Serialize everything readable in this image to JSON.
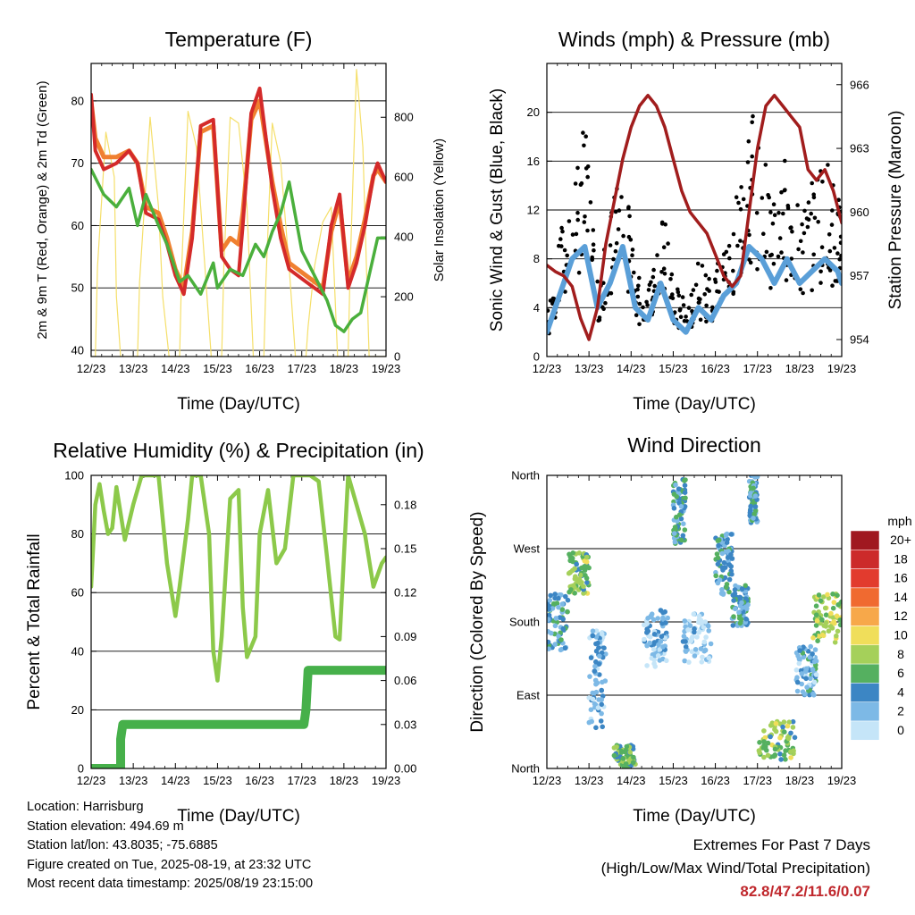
{
  "colors": {
    "temp_2m": "#d42a2a",
    "temp_9m": "#f08030",
    "dewpoint": "#4aaf3c",
    "solar": "#f5df6a",
    "wind": "#5a9fd8",
    "gust": "#000000",
    "pressure": "#a11d1d",
    "rh": "#8cc94a",
    "precip": "#46b04a",
    "extremes_text": "#c0282d"
  },
  "chart_data": [
    {
      "type": "line",
      "title": "Temperature (F)",
      "xlabel": "Time (Day/UTC)",
      "ylabel": "2m & 9m T (Red, Orange) & 2m Td (Green)",
      "ylabel_right": "Solar Insolation (Yellow)",
      "x_ticks": [
        "12/23",
        "13/23",
        "14/23",
        "15/23",
        "16/23",
        "17/23",
        "18/23",
        "19/23"
      ],
      "xlim": [
        0,
        7
      ],
      "ylim": [
        39,
        86
      ],
      "y_ticks": [
        40,
        50,
        60,
        70,
        80
      ],
      "ylim_right": [
        0,
        980
      ],
      "y_ticks_right": [
        0,
        200,
        400,
        600,
        800
      ],
      "grid": "horizontal",
      "series": [
        {
          "axis": "left",
          "x": [
            0,
            0.1,
            0.3,
            0.6,
            0.9,
            1.1,
            1.3,
            1.6,
            1.8,
            2.0,
            2.2,
            2.4,
            2.6,
            2.9,
            3.1,
            3.3,
            3.5,
            3.6,
            3.8,
            4.0,
            4.3,
            4.5,
            4.7,
            4.9,
            5.1,
            5.3,
            5.5,
            5.7,
            5.9,
            6.1,
            6.3,
            6.5,
            6.7,
            6.8,
            7.0
          ],
          "values": [
            81,
            72,
            69,
            70,
            72,
            70,
            62,
            61,
            57,
            52,
            49,
            58,
            76,
            77,
            55,
            53,
            52,
            60,
            78,
            82,
            66,
            58,
            53,
            52,
            51,
            50,
            49,
            60,
            65,
            50,
            54,
            60,
            68,
            70,
            67
          ]
        },
        {
          "axis": "left",
          "x": [
            0,
            0.1,
            0.3,
            0.6,
            0.9,
            1.1,
            1.3,
            1.6,
            1.8,
            2.0,
            2.2,
            2.4,
            2.6,
            2.9,
            3.1,
            3.3,
            3.5,
            3.6,
            3.8,
            4.0,
            4.3,
            4.5,
            4.7,
            4.9,
            5.1,
            5.3,
            5.5,
            5.7,
            5.9,
            6.1,
            6.3,
            6.5,
            6.7,
            6.8,
            7.0
          ],
          "values": [
            80,
            74,
            71,
            71,
            72,
            70,
            63,
            62,
            58,
            53,
            50,
            59,
            75,
            76,
            56,
            58,
            57,
            62,
            77,
            80,
            67,
            60,
            54,
            53,
            52,
            51,
            50,
            59,
            64,
            51,
            55,
            61,
            68,
            69,
            67
          ]
        },
        {
          "axis": "left",
          "x": [
            0,
            0.3,
            0.6,
            0.9,
            1.1,
            1.3,
            1.6,
            1.8,
            2.1,
            2.3,
            2.6,
            2.9,
            3.0,
            3.3,
            3.6,
            3.9,
            4.1,
            4.3,
            4.5,
            4.7,
            5.0,
            5.3,
            5.6,
            5.8,
            6.0,
            6.2,
            6.4,
            6.6,
            6.8,
            7.0
          ],
          "values": [
            69,
            65,
            63,
            66,
            60,
            65,
            60,
            57,
            51,
            52,
            49,
            54,
            50,
            53,
            52,
            57,
            55,
            59,
            62,
            67,
            56,
            52,
            48,
            44,
            43,
            45,
            46,
            52,
            58,
            58
          ]
        },
        {
          "axis": "right",
          "x": [
            0,
            0.1,
            0.15,
            0.35,
            0.55,
            0.6,
            0.7,
            0.8,
            1.1,
            1.15,
            1.4,
            1.6,
            1.7,
            1.85,
            2.1,
            2.15,
            2.3,
            2.5,
            2.7,
            2.85,
            3.1,
            3.15,
            3.3,
            3.5,
            3.7,
            3.85,
            4.1,
            4.15,
            4.3,
            4.5,
            4.7,
            4.85,
            5.1,
            5.15,
            5.3,
            5.5,
            5.7,
            5.85,
            6.1,
            6.15,
            6.3,
            6.45,
            6.6,
            6.85,
            7.0
          ],
          "values": [
            0,
            0,
            300,
            750,
            600,
            200,
            0,
            0,
            0,
            250,
            800,
            500,
            200,
            0,
            0,
            300,
            820,
            700,
            300,
            0,
            0,
            300,
            800,
            780,
            500,
            0,
            0,
            250,
            780,
            650,
            300,
            0,
            0,
            100,
            300,
            450,
            500,
            0,
            0,
            300,
            960,
            700,
            0,
            0,
            0
          ]
        }
      ],
      "series_names": [
        "2m T",
        "9m T",
        "2m Td",
        "Solar Insolation"
      ]
    },
    {
      "type": "line",
      "title": "Winds (mph) & Pressure (mb)",
      "xlabel": "Time (Day/UTC)",
      "ylabel": "Sonic Wind & Gust (Blue, Black)",
      "ylabel_right": "Station Pressure (Maroon)",
      "x_ticks": [
        "12/23",
        "13/23",
        "14/23",
        "15/23",
        "16/23",
        "17/23",
        "18/23",
        "19/23"
      ],
      "xlim": [
        0,
        7
      ],
      "ylim": [
        0,
        24
      ],
      "y_ticks": [
        0,
        4,
        8,
        12,
        16,
        20
      ],
      "ylim_right": [
        953.2,
        967
      ],
      "y_ticks_right": [
        954,
        957,
        960,
        963,
        966
      ],
      "grid": "horizontal",
      "series": [
        {
          "axis": "left",
          "x": [
            0,
            0.3,
            0.6,
            0.9,
            1.2,
            1.5,
            1.8,
            2.1,
            2.4,
            2.7,
            3.0,
            3.3,
            3.6,
            3.9,
            4.2,
            4.5,
            4.8,
            5.1,
            5.4,
            5.7,
            6.0,
            6.3,
            6.6,
            6.9,
            7.0
          ],
          "values": [
            2,
            5,
            8,
            9,
            4,
            6,
            9,
            4,
            3,
            6,
            3,
            2,
            4,
            3,
            5,
            6,
            9,
            8,
            6,
            8,
            6,
            7,
            8,
            7,
            6
          ]
        },
        {
          "axis": "left",
          "x": [
            0,
            0.3,
            0.6,
            0.9,
            1.2,
            1.5,
            1.8,
            2.1,
            2.4,
            2.7,
            3.0,
            3.3,
            3.6,
            3.9,
            4.2,
            4.5,
            4.8,
            5.1,
            5.4,
            5.7,
            6.0,
            6.3,
            6.6,
            6.9,
            7.0
          ],
          "values": [
            3,
            8,
            13,
            16,
            6,
            10,
            14,
            6,
            5,
            12,
            5,
            4,
            7,
            5,
            8,
            11,
            17,
            15,
            11,
            14,
            10,
            12,
            14,
            12,
            9
          ]
        },
        {
          "axis": "right",
          "x": [
            0,
            0.2,
            0.4,
            0.6,
            0.8,
            1.0,
            1.2,
            1.4,
            1.6,
            1.8,
            2.0,
            2.2,
            2.4,
            2.6,
            2.8,
            3.0,
            3.2,
            3.4,
            3.6,
            3.8,
            4.0,
            4.2,
            4.4,
            4.6,
            4.8,
            5.0,
            5.2,
            5.4,
            5.6,
            5.8,
            6.0,
            6.2,
            6.4,
            6.6,
            6.8,
            7.0
          ],
          "values": [
            957.5,
            957.2,
            957,
            956.5,
            955,
            954,
            955.5,
            958.5,
            960.5,
            962.5,
            964,
            965,
            965.5,
            965,
            964,
            962.5,
            961,
            960,
            959.5,
            959,
            958,
            957,
            956.5,
            957,
            960,
            963,
            965,
            965.5,
            965,
            964.5,
            964,
            962,
            961.5,
            962,
            961,
            959.5
          ]
        }
      ],
      "series_names": [
        "Sonic Wind",
        "Gust",
        "Station Pressure"
      ]
    },
    {
      "type": "line",
      "title": "Relative Humidity (%) & Precipitation (in)",
      "xlabel": "Time (Day/UTC)",
      "ylabel": "Percent & Total Rainfall",
      "x_ticks": [
        "12/23",
        "13/23",
        "14/23",
        "15/23",
        "16/23",
        "17/23",
        "18/23",
        "19/23"
      ],
      "xlim": [
        0,
        7
      ],
      "ylim": [
        0,
        100
      ],
      "y_ticks": [
        0,
        20,
        40,
        60,
        80,
        100
      ],
      "ylim_right": [
        0,
        0.2
      ],
      "y_ticks_right": [
        "0.00",
        "0.03",
        "0.06",
        "0.09",
        "0.12",
        "0.15",
        "0.18"
      ],
      "grid": "horizontal",
      "series": [
        {
          "axis": "left",
          "x": [
            0,
            0.1,
            0.2,
            0.3,
            0.4,
            0.5,
            0.6,
            0.8,
            1.0,
            1.2,
            1.4,
            1.6,
            1.8,
            2.0,
            2.1,
            2.3,
            2.4,
            2.6,
            2.8,
            2.9,
            3.0,
            3.1,
            3.3,
            3.5,
            3.6,
            3.7,
            3.9,
            4.0,
            4.2,
            4.4,
            4.6,
            4.8,
            5.0,
            5.2,
            5.4,
            5.6,
            5.8,
            5.9,
            6.1,
            6.3,
            6.5,
            6.7,
            6.9,
            7.0
          ],
          "values": [
            62,
            90,
            97,
            88,
            80,
            82,
            96,
            78,
            90,
            100,
            100,
            100,
            70,
            52,
            62,
            85,
            100,
            100,
            80,
            40,
            30,
            45,
            92,
            95,
            55,
            38,
            45,
            80,
            95,
            70,
            75,
            100,
            100,
            100,
            98,
            72,
            45,
            44,
            100,
            90,
            80,
            62,
            70,
            72
          ]
        },
        {
          "axis": "right",
          "x": [
            0,
            0.7,
            0.7,
            0.75,
            5.05,
            5.1,
            5.15,
            7.0
          ],
          "values": [
            0,
            0,
            0.02,
            0.03,
            0.03,
            0.04,
            0.067,
            0.067
          ]
        }
      ],
      "series_names": [
        "Relative Humidity",
        "Total Precipitation"
      ]
    },
    {
      "type": "scatter",
      "title": "Wind Direction",
      "xlabel": "Time (Day/UTC)",
      "ylabel": "Direction (Colored By Speed)",
      "x_ticks": [
        "12/23",
        "13/23",
        "14/23",
        "15/23",
        "16/23",
        "17/23",
        "18/23",
        "19/23"
      ],
      "xlim": [
        0,
        7
      ],
      "ylim": [
        0,
        360
      ],
      "y_ticks": [
        "North",
        "East",
        "South",
        "West",
        "North"
      ],
      "grid": "horizontal",
      "legend": {
        "title": "mph",
        "labels": [
          "20+",
          "18",
          "16",
          "14",
          "12",
          "10",
          "8",
          "6",
          "4",
          "2",
          "0"
        ],
        "colors": [
          "#a01820",
          "#cc2a2a",
          "#e23b2e",
          "#f06a30",
          "#f7a84a",
          "#f0de5a",
          "#a5d05a",
          "#55b060",
          "#3c86c4",
          "#7db9e6",
          "#c5e5f8"
        ],
        "position": "right"
      },
      "clusters": [
        {
          "x": 0.0,
          "x_span": 0.5,
          "direction": 180,
          "spread": 35,
          "speed": 4
        },
        {
          "x": 0.5,
          "x_span": 0.5,
          "direction": 240,
          "spread": 25,
          "speed": 7
        },
        {
          "x": 1.0,
          "x_span": 0.4,
          "direction": 110,
          "spread": 60,
          "speed": 2
        },
        {
          "x": 1.6,
          "x_span": 0.5,
          "direction": 15,
          "spread": 15,
          "speed": 6
        },
        {
          "x": 2.3,
          "x_span": 0.6,
          "direction": 160,
          "spread": 35,
          "speed": 2
        },
        {
          "x": 3.0,
          "x_span": 0.3,
          "direction": 315,
          "spread": 40,
          "speed": 4
        },
        {
          "x": 3.2,
          "x_span": 0.7,
          "direction": 160,
          "spread": 30,
          "speed": 1
        },
        {
          "x": 4.0,
          "x_span": 0.4,
          "direction": 250,
          "spread": 40,
          "speed": 4
        },
        {
          "x": 4.4,
          "x_span": 0.4,
          "direction": 200,
          "spread": 25,
          "speed": 4
        },
        {
          "x": 4.8,
          "x_span": 0.2,
          "direction": 330,
          "spread": 30,
          "speed": 4
        },
        {
          "x": 5.0,
          "x_span": 0.9,
          "direction": 35,
          "spread": 25,
          "speed": 7
        },
        {
          "x": 5.9,
          "x_span": 0.5,
          "direction": 120,
          "spread": 30,
          "speed": 3
        },
        {
          "x": 6.3,
          "x_span": 0.7,
          "direction": 185,
          "spread": 30,
          "speed": 8
        }
      ]
    }
  ],
  "info": {
    "location": "Location: Harrisburg",
    "elevation": "Station elevation: 494.69 m",
    "latlon": "Station lat/lon: 43.8035; -75.6885",
    "created": "Figure created on Tue, 2025-08-19, at 23:32 UTC",
    "timestamp": "Most recent data timestamp: 2025/08/19 23:15:00"
  },
  "extremes": {
    "title": "Extremes For Past 7 Days",
    "subtitle": "(High/Low/Max Wind/Total Precipitation)",
    "values": "82.8/47.2/11.6/0.07"
  }
}
